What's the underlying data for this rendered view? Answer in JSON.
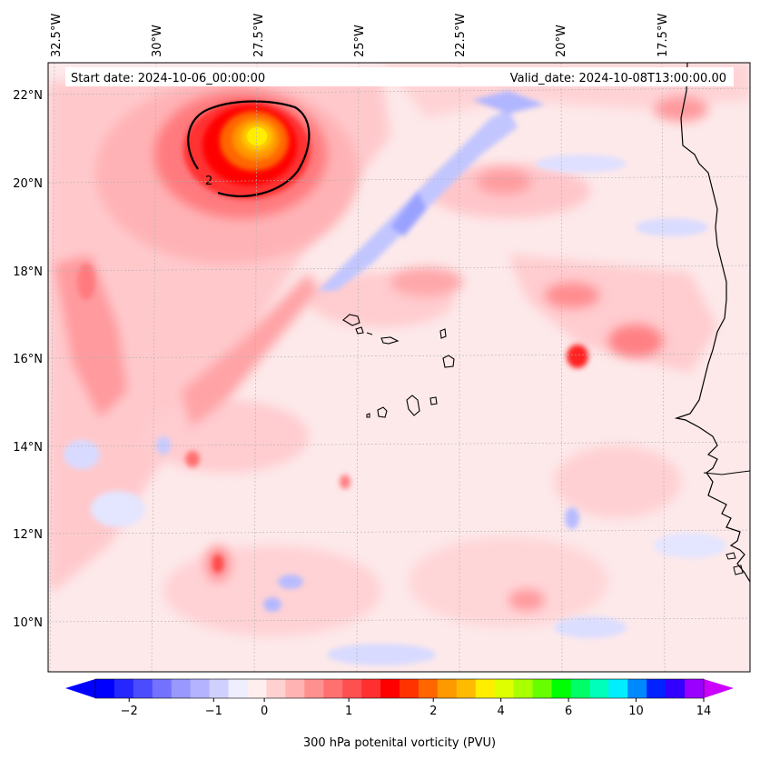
{
  "header": {
    "start_date": "Start date: 2024-10-06_00:00:00",
    "valid_date": "Valid_date: 2024-10-08T13:00:00.00"
  },
  "lon_labels": [
    "32.5°W",
    "30°W",
    "27.5°W",
    "25°W",
    "22.5°W",
    "20°W",
    "17.5°W"
  ],
  "lat_labels": [
    "22°N",
    "20°N",
    "18°N",
    "16°N",
    "14°N",
    "12°N",
    "10°N"
  ],
  "colorbar": {
    "label": "300 hPa potenital vorticity (PVU)",
    "tick_labels": [
      "−2",
      "−1",
      "0",
      "1",
      "2",
      "4",
      "6",
      "10",
      "14"
    ],
    "colors": [
      "#0000ff",
      "#2626ff",
      "#4c4cff",
      "#7272ff",
      "#9898ff",
      "#b3b3ff",
      "#d0d0ff",
      "#eeeeff",
      "#ffeeee",
      "#ffd0d0",
      "#ffb3b3",
      "#ff9090",
      "#ff7070",
      "#ff5050",
      "#ff3030",
      "#ff0000",
      "#ff3300",
      "#ff6600",
      "#ff9900",
      "#ffbb00",
      "#ffee00",
      "#ddff00",
      "#aaff00",
      "#66ff00",
      "#00ff00",
      "#00ff66",
      "#00ffbb",
      "#00eeff",
      "#0088ff",
      "#0022ff",
      "#3300ff",
      "#9900ff"
    ],
    "under_color": "#0000ff",
    "over_color": "#cc00ff"
  },
  "contour_label": "2",
  "colors": {
    "land_outline": "#000000",
    "grid": "#b0b0b0"
  }
}
